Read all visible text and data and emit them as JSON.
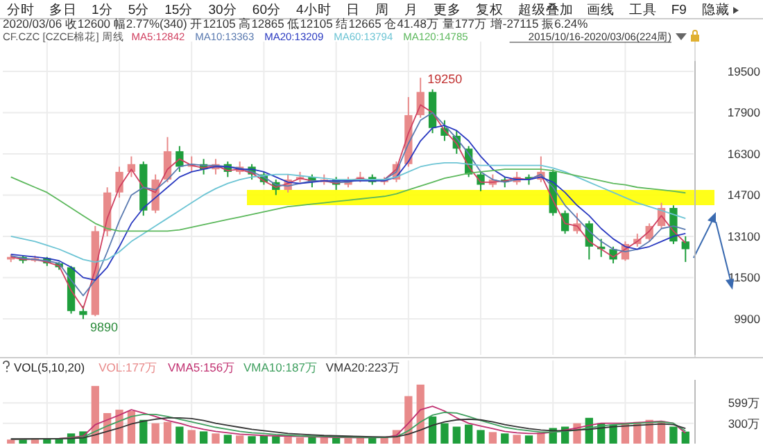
{
  "chart_data": [
    {
      "type": "other",
      "annotations": [
        "分时",
        "多日",
        "1分",
        "5分",
        "15分",
        "30分",
        "60分",
        "4小时",
        "日",
        "周",
        "月",
        "更多",
        "复权",
        "超级叠加",
        "画线",
        "工具",
        "F9",
        "隐藏"
      ]
    },
    {
      "type": "candlestick",
      "title": "CF.CZC [CZCE棉花] 周线",
      "subtitle": "2020/03/06 收12600 幅2.77%(340) 开12105 高12865 低12105 结12665 仓41.48万 量177万 增-27115 振6.24%",
      "categories": [
        null,
        null,
        null,
        null,
        null,
        null,
        null,
        null,
        null,
        null,
        null,
        null,
        null,
        null,
        null,
        null,
        null,
        null,
        null,
        null,
        null,
        null,
        null,
        null,
        null,
        null,
        null,
        null,
        null,
        null,
        null,
        null,
        null,
        null,
        null,
        null,
        null,
        null,
        null,
        null,
        null,
        null,
        null,
        null,
        null,
        null,
        null,
        null,
        null,
        null,
        null,
        null,
        null,
        null,
        null,
        null,
        null
      ],
      "ohlc": [
        [
          12200,
          12400,
          12100,
          12300
        ],
        [
          12300,
          12350,
          12050,
          12150
        ],
        [
          12150,
          12350,
          12100,
          12250
        ],
        [
          12250,
          12300,
          11950,
          12050
        ],
        [
          12050,
          12100,
          11800,
          11900
        ],
        [
          11900,
          11950,
          10100,
          10200
        ],
        [
          10200,
          10400,
          9890,
          10050
        ],
        [
          10050,
          13500,
          10000,
          13300
        ],
        [
          13300,
          15000,
          13100,
          14800
        ],
        [
          14800,
          15800,
          14600,
          15600
        ],
        [
          15600,
          16200,
          15400,
          15900
        ],
        [
          15900,
          16000,
          13900,
          14100
        ],
        [
          14100,
          15500,
          14000,
          15300
        ],
        [
          15300,
          16950,
          15200,
          16400
        ],
        [
          16400,
          16600,
          15600,
          15800
        ],
        [
          15800,
          16200,
          15600,
          15900
        ],
        [
          15900,
          16100,
          15500,
          15700
        ],
        [
          15700,
          16100,
          15500,
          15900
        ],
        [
          15900,
          16000,
          15400,
          15600
        ],
        [
          15600,
          16000,
          15500,
          15800
        ],
        [
          15800,
          15900,
          15300,
          15500
        ],
        [
          15500,
          15600,
          15100,
          15200
        ],
        [
          15200,
          15300,
          14700,
          14900
        ],
        [
          14900,
          15500,
          14800,
          15300
        ],
        [
          15300,
          15600,
          15200,
          15400
        ],
        [
          15400,
          15500,
          15000,
          15200
        ],
        [
          15200,
          15500,
          15100,
          15300
        ],
        [
          15300,
          15400,
          14900,
          15100
        ],
        [
          15100,
          15400,
          15000,
          15300
        ],
        [
          15300,
          15600,
          15200,
          15400
        ],
        [
          15400,
          15500,
          15100,
          15200
        ],
        [
          15200,
          15400,
          15100,
          15300
        ],
        [
          15300,
          16000,
          15200,
          15900
        ],
        [
          15900,
          18500,
          15800,
          17800
        ],
        [
          17800,
          19250,
          17700,
          18700
        ],
        [
          18700,
          18800,
          17100,
          17300
        ],
        [
          17300,
          17600,
          16800,
          17000
        ],
        [
          17000,
          17200,
          16300,
          16500
        ],
        [
          16500,
          16600,
          15400,
          15500
        ],
        [
          15500,
          15600,
          14850,
          15100
        ],
        [
          15100,
          15500,
          15000,
          15300
        ],
        [
          15300,
          15400,
          15000,
          15200
        ],
        [
          15200,
          15600,
          15100,
          15400
        ],
        [
          15400,
          15500,
          15100,
          15300
        ],
        [
          15300,
          16200,
          15200,
          15600
        ],
        [
          15600,
          15700,
          13900,
          14000
        ],
        [
          14000,
          14100,
          13200,
          13300
        ],
        [
          13300,
          14000,
          13200,
          13600
        ],
        [
          13600,
          13700,
          12200,
          12700
        ],
        [
          12700,
          13000,
          12300,
          12600
        ],
        [
          12600,
          12700,
          12050,
          12200
        ],
        [
          12200,
          12900,
          12150,
          12800
        ],
        [
          12800,
          13200,
          12700,
          13000
        ],
        [
          13000,
          13600,
          12900,
          13500
        ],
        [
          13500,
          14400,
          13400,
          14200
        ],
        [
          14200,
          14300,
          12800,
          12900
        ],
        [
          12900,
          13100,
          12105,
          12600
        ]
      ],
      "colors": [
        "#e88a8a",
        "#1f9e3c",
        "#e88a8a",
        "#1f9e3c",
        "#1f9e3c",
        "#1f9e3c",
        "#1f9e3c",
        "#e88a8a",
        "#e88a8a",
        "#e88a8a",
        "#e88a8a",
        "#1f9e3c",
        "#e88a8a",
        "#e88a8a",
        "#1f9e3c",
        "#e88a8a",
        "#1f9e3c",
        "#e88a8a",
        "#1f9e3c",
        "#e88a8a",
        "#1f9e3c",
        "#1f9e3c",
        "#1f9e3c",
        "#e88a8a",
        "#e88a8a",
        "#1f9e3c",
        "#e88a8a",
        "#1f9e3c",
        "#e88a8a",
        "#e88a8a",
        "#1f9e3c",
        "#e88a8a",
        "#e88a8a",
        "#e88a8a",
        "#e88a8a",
        "#1f9e3c",
        "#1f9e3c",
        "#1f9e3c",
        "#1f9e3c",
        "#1f9e3c",
        "#e88a8a",
        "#1f9e3c",
        "#e88a8a",
        "#1f9e3c",
        "#e88a8a",
        "#1f9e3c",
        "#1f9e3c",
        "#e88a8a",
        "#1f9e3c",
        "#1f9e3c",
        "#1f9e3c",
        "#e88a8a",
        "#e88a8a",
        "#e88a8a",
        "#e88a8a",
        "#1f9e3c",
        "#1f9e3c"
      ],
      "series": [
        {
          "type": "line",
          "name": "MA5:12842",
          "color": "#d04060",
          "values": [
            12300,
            12200,
            12200,
            12100,
            11950,
            11000,
            10300,
            11800,
            13800,
            15000,
            15700,
            15000,
            14800,
            15700,
            16100,
            15850,
            15750,
            15850,
            15650,
            15700,
            15550,
            15250,
            15000,
            15150,
            15350,
            15250,
            15250,
            15150,
            15250,
            15350,
            15250,
            15300,
            15700,
            17100,
            18200,
            17900,
            17200,
            16700,
            15800,
            15200,
            15200,
            15250,
            15350,
            15300,
            15500,
            14500,
            13600,
            13500,
            12900,
            12600,
            12300,
            12600,
            12900,
            13300,
            13900,
            13300,
            12842
          ]
        },
        {
          "type": "line",
          "name": "MA10:13363",
          "color": "#5a7ab0",
          "values": [
            12350,
            12250,
            12200,
            12150,
            12050,
            11400,
            10800,
            11400,
            12500,
            13700,
            14700,
            15000,
            14900,
            15300,
            15800,
            15900,
            15850,
            15850,
            15800,
            15750,
            15600,
            15400,
            15100,
            15050,
            15150,
            15250,
            15250,
            15200,
            15200,
            15300,
            15300,
            15300,
            15600,
            16700,
            17600,
            17900,
            17400,
            16900,
            16300,
            15600,
            15300,
            15200,
            15300,
            15300,
            15500,
            15000,
            14300,
            13800,
            13300,
            12900,
            12600,
            12500,
            12600,
            12900,
            13400,
            13500,
            13363
          ]
        },
        {
          "type": "line",
          "name": "MA20:13209",
          "color": "#2838c0",
          "values": [
            12400,
            12350,
            12300,
            12250,
            12150,
            11900,
            11500,
            11400,
            11900,
            12700,
            13600,
            14200,
            14600,
            15000,
            15400,
            15600,
            15700,
            15800,
            15800,
            15700,
            15700,
            15600,
            15400,
            15200,
            15150,
            15200,
            15250,
            15250,
            15250,
            15250,
            15250,
            15250,
            15400,
            16000,
            16800,
            17300,
            17400,
            17200,
            16800,
            16200,
            15700,
            15400,
            15300,
            15300,
            15400,
            15200,
            14800,
            14300,
            13900,
            13400,
            13000,
            12700,
            12600,
            12700,
            12900,
            13100,
            13209
          ]
        },
        {
          "type": "line",
          "name": "MA60:13794",
          "color": "#6cc4d4",
          "values": [
            13100,
            13000,
            12900,
            12750,
            12600,
            12400,
            12200,
            12100,
            12200,
            12500,
            12900,
            13200,
            13500,
            13800,
            14100,
            14400,
            14700,
            14950,
            15150,
            15300,
            15400,
            15450,
            15500,
            15500,
            15450,
            15400,
            15350,
            15300,
            15300,
            15300,
            15300,
            15300,
            15400,
            15600,
            15800,
            15900,
            15950,
            15950,
            15900,
            15850,
            15850,
            15850,
            15850,
            15850,
            15850,
            15750,
            15600,
            15400,
            15200,
            15000,
            14800,
            14600,
            14400,
            14250,
            14100,
            13950,
            13794
          ]
        },
        {
          "type": "line",
          "name": "MA120:14785",
          "color": "#5cb85c",
          "values": [
            15400,
            15200,
            15000,
            14800,
            14500,
            14200,
            13900,
            13600,
            13400,
            13300,
            13300,
            13300,
            13300,
            13300,
            13350,
            13450,
            13550,
            13650,
            13750,
            13850,
            13950,
            14050,
            14150,
            14250,
            14300,
            14350,
            14400,
            14450,
            14500,
            14550,
            14600,
            14650,
            14750,
            14900,
            15050,
            15200,
            15350,
            15450,
            15550,
            15600,
            15650,
            15700,
            15700,
            15700,
            15700,
            15650,
            15550,
            15450,
            15350,
            15250,
            15150,
            15100,
            15000,
            14950,
            14900,
            14850,
            14785
          ]
        }
      ],
      "ylim": [
        8500,
        19900
      ],
      "yticks": [
        9900,
        11500,
        13100,
        14700,
        16300,
        17900,
        19500
      ],
      "grid": true,
      "tick_labels": "y",
      "legend": "top left",
      "line_style": "solid",
      "annotations": [
        "19250",
        "9890",
        "2015/10/16-2020/03/06(224周)"
      ]
    },
    {
      "type": "bar",
      "title": "VOL(5,10,20)",
      "categories": [
        null,
        null,
        null,
        null,
        null,
        null,
        null,
        null,
        null,
        null,
        null,
        null,
        null,
        null,
        null,
        null,
        null,
        null,
        null,
        null,
        null,
        null,
        null,
        null,
        null,
        null,
        null,
        null,
        null,
        null,
        null,
        null,
        null,
        null,
        null,
        null,
        null,
        null,
        null,
        null,
        null,
        null,
        null,
        null,
        null,
        null,
        null,
        null,
        null,
        null,
        null,
        null,
        null,
        null,
        null,
        null,
        null
      ],
      "series": [
        {
          "type": "bar",
          "name": "VOL:177万",
          "colors": [
            "#e88a8a",
            "#1f9e3c",
            "#e88a8a",
            "#1f9e3c",
            "#1f9e3c",
            "#1f9e3c",
            "#1f9e3c",
            "#e88a8a",
            "#e88a8a",
            "#e88a8a",
            "#e88a8a",
            "#1f9e3c",
            "#e88a8a",
            "#e88a8a",
            "#1f9e3c",
            "#e88a8a",
            "#1f9e3c",
            "#e88a8a",
            "#1f9e3c",
            "#e88a8a",
            "#1f9e3c",
            "#1f9e3c",
            "#1f9e3c",
            "#e88a8a",
            "#e88a8a",
            "#1f9e3c",
            "#e88a8a",
            "#1f9e3c",
            "#e88a8a",
            "#e88a8a",
            "#1f9e3c",
            "#e88a8a",
            "#e88a8a",
            "#e88a8a",
            "#e88a8a",
            "#1f9e3c",
            "#1f9e3c",
            "#1f9e3c",
            "#1f9e3c",
            "#1f9e3c",
            "#e88a8a",
            "#1f9e3c",
            "#e88a8a",
            "#1f9e3c",
            "#e88a8a",
            "#1f9e3c",
            "#1f9e3c",
            "#e88a8a",
            "#1f9e3c",
            "#1f9e3c",
            "#1f9e3c",
            "#e88a8a",
            "#e88a8a",
            "#e88a8a",
            "#e88a8a",
            "#1f9e3c",
            "#1f9e3c"
          ],
          "values": [
            60,
            70,
            80,
            70,
            80,
            150,
            180,
            850,
            450,
            500,
            480,
            350,
            300,
            320,
            250,
            200,
            180,
            150,
            130,
            120,
            110,
            120,
            110,
            100,
            90,
            100,
            90,
            90,
            80,
            90,
            90,
            100,
            200,
            700,
            870,
            400,
            300,
            250,
            280,
            200,
            170,
            150,
            130,
            120,
            160,
            230,
            250,
            300,
            380,
            300,
            280,
            300,
            320,
            350,
            330,
            250,
            177
          ]
        },
        {
          "type": "line",
          "name": "VMA5:156万",
          "color": "#c03070",
          "values": [
            60,
            65,
            70,
            72,
            75,
            90,
            110,
            280,
            350,
            420,
            500,
            450,
            400,
            340,
            300,
            250,
            210,
            180,
            160,
            140,
            130,
            120,
            115,
            110,
            105,
            100,
            95,
            92,
            90,
            88,
            88,
            90,
            120,
            300,
            500,
            550,
            480,
            380,
            300,
            260,
            220,
            180,
            160,
            150,
            150,
            170,
            200,
            230,
            270,
            300,
            300,
            300,
            310,
            320,
            330,
            300,
            156
          ]
        },
        {
          "type": "line",
          "name": "VMA10:187万",
          "color": "#40a060",
          "values": [
            65,
            65,
            68,
            70,
            72,
            80,
            95,
            180,
            260,
            330,
            400,
            430,
            430,
            400,
            360,
            320,
            280,
            240,
            210,
            180,
            160,
            150,
            135,
            125,
            115,
            110,
            105,
            100,
            97,
            93,
            92,
            92,
            100,
            190,
            320,
            420,
            460,
            450,
            400,
            340,
            290,
            240,
            210,
            190,
            170,
            170,
            180,
            200,
            230,
            260,
            280,
            290,
            300,
            310,
            320,
            300,
            187
          ]
        },
        {
          "type": "line",
          "name": "VMA20:223万",
          "color": "#333333",
          "values": [
            70,
            70,
            70,
            70,
            72,
            75,
            85,
            130,
            180,
            230,
            290,
            330,
            360,
            380,
            380,
            370,
            340,
            300,
            270,
            240,
            210,
            190,
            170,
            150,
            140,
            130,
            120,
            115,
            110,
            105,
            100,
            98,
            100,
            140,
            200,
            270,
            320,
            350,
            360,
            350,
            320,
            280,
            250,
            220,
            200,
            190,
            190,
            200,
            210,
            230,
            250,
            260,
            270,
            280,
            290,
            280,
            223
          ]
        }
      ],
      "ylim": [
        0,
        940
      ],
      "yticks": [
        {
          "value": 300,
          "label": "300万"
        },
        {
          "value": 599,
          "label": "599万"
        }
      ],
      "grid": true,
      "tick_labels": "y",
      "legend": "top left",
      "line_style": "solid"
    }
  ]
}
